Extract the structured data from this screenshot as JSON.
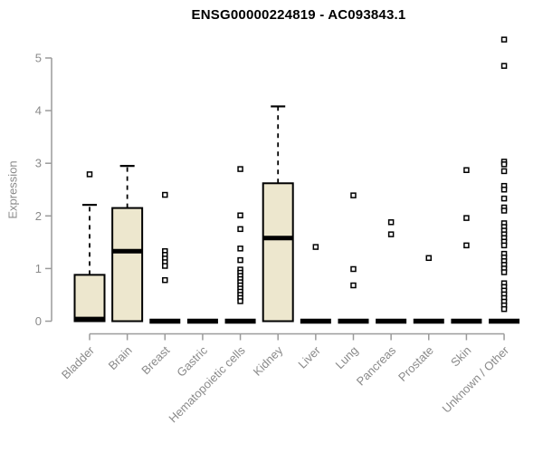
{
  "chart_data": {
    "type": "boxplot",
    "title": "ENSG00000224819 - AC093843.1",
    "ylabel": "Expression",
    "xlabel": "",
    "ylim": [
      0,
      5.5
    ],
    "yticks": [
      0,
      1,
      2,
      3,
      4,
      5
    ],
    "grid": false,
    "legend": "none",
    "categories": [
      "Bladder",
      "Brain",
      "Breast",
      "Gastric",
      "Hematopoietic cells",
      "Kidney",
      "Liver",
      "Lung",
      "Pancreas",
      "Prostate",
      "Skin",
      "Unknown / Other"
    ],
    "series": [
      {
        "name": "Bladder",
        "q1": 0,
        "median": 0.04,
        "q3": 0.88,
        "whisker_low": 0,
        "whisker_high": 2.21,
        "outliers": [
          2.79
        ]
      },
      {
        "name": "Brain",
        "q1": 0,
        "median": 1.33,
        "q3": 2.15,
        "whisker_low": 0,
        "whisker_high": 2.95,
        "outliers": []
      },
      {
        "name": "Breast",
        "q1": 0,
        "median": 0,
        "q3": 0,
        "whisker_low": 0,
        "whisker_high": 0,
        "outliers": [
          2.4,
          1.33,
          1.26,
          1.19,
          1.12,
          1.05,
          0.78
        ]
      },
      {
        "name": "Gastric",
        "q1": 0,
        "median": 0,
        "q3": 0,
        "whisker_low": 0,
        "whisker_high": 0,
        "outliers": []
      },
      {
        "name": "Hematopoietic cells",
        "q1": 0,
        "median": 0,
        "q3": 0,
        "whisker_low": 0,
        "whisker_high": 0,
        "outliers": [
          2.89,
          2.01,
          1.75,
          1.38,
          1.16,
          0.98,
          0.92,
          0.86,
          0.8,
          0.74,
          0.68,
          0.62,
          0.56,
          0.5,
          0.44,
          0.38
        ]
      },
      {
        "name": "Kidney",
        "q1": 0,
        "median": 1.58,
        "q3": 2.62,
        "whisker_low": 0,
        "whisker_high": 4.08,
        "outliers": []
      },
      {
        "name": "Liver",
        "q1": 0,
        "median": 0,
        "q3": 0,
        "whisker_low": 0,
        "whisker_high": 0,
        "outliers": [
          1.41
        ]
      },
      {
        "name": "Lung",
        "q1": 0,
        "median": 0,
        "q3": 0,
        "whisker_low": 0,
        "whisker_high": 0,
        "outliers": [
          2.39,
          0.99,
          0.68
        ]
      },
      {
        "name": "Pancreas",
        "q1": 0,
        "median": 0,
        "q3": 0,
        "whisker_low": 0,
        "whisker_high": 0,
        "outliers": [
          1.88,
          1.65
        ]
      },
      {
        "name": "Prostate",
        "q1": 0,
        "median": 0,
        "q3": 0,
        "whisker_low": 0,
        "whisker_high": 0,
        "outliers": [
          1.2
        ]
      },
      {
        "name": "Skin",
        "q1": 0,
        "median": 0,
        "q3": 0,
        "whisker_low": 0,
        "whisker_high": 0,
        "outliers": [
          2.87,
          1.96,
          1.44
        ]
      },
      {
        "name": "Unknown / Other",
        "q1": 0,
        "median": 0,
        "q3": 0,
        "whisker_low": 0,
        "whisker_high": 0,
        "outliers": [
          5.35,
          4.85,
          3.03,
          2.98,
          2.85,
          2.57,
          2.5,
          2.33,
          2.16,
          2.1,
          1.86,
          1.79,
          1.72,
          1.65,
          1.58,
          1.51,
          1.44,
          1.28,
          1.21,
          1.14,
          1.07,
          1.0,
          0.93,
          0.72,
          0.65,
          0.58,
          0.51,
          0.44,
          0.37,
          0.3,
          0.23
        ]
      }
    ],
    "colors": {
      "box_fill": "#EDE7CE",
      "box_stroke": "#000000",
      "median": "#000000",
      "zero_bar": "#000000",
      "outlier_stroke": "#000000",
      "outlier_fill": "#FFFFFF",
      "axis": "#9B9B9B",
      "tick_label": "#8A8A8A",
      "title": "#000000",
      "background": "#FFFFFF"
    }
  }
}
